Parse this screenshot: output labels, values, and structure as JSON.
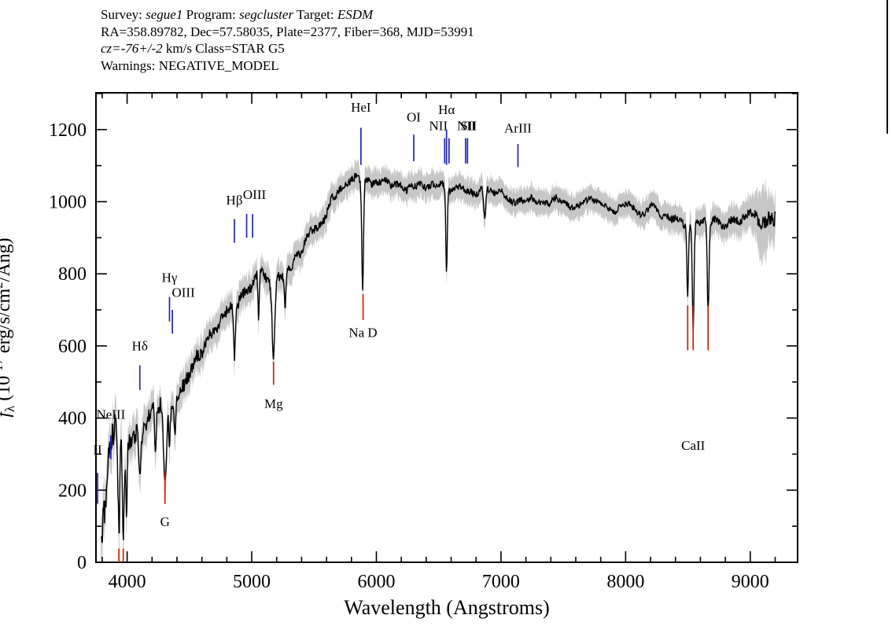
{
  "header": {
    "lines": [
      {
        "segments": [
          {
            "text": "Survey: "
          },
          {
            "text": "segue1",
            "italic": true
          },
          {
            "text": " Program: "
          },
          {
            "text": "segcluster",
            "italic": true
          },
          {
            "text": " Target: "
          },
          {
            "text": "ESDM",
            "italic": true
          }
        ]
      },
      {
        "segments": [
          {
            "text": "RA=358.89782, Dec=57.58035, Plate=2377, Fiber=368, MJD=53991"
          }
        ]
      },
      {
        "segments": [
          {
            "text": "cz=-76+/-2",
            "italic": true
          },
          {
            "text": " km/s Class=STAR G5"
          }
        ]
      },
      {
        "segments": [
          {
            "text": "Warnings: NEGATIVE_MODEL"
          }
        ]
      }
    ]
  },
  "chart_data": {
    "type": "line",
    "xlabel": "Wavelength (Angstroms)",
    "ylabel": "f_lambda (10^-17 erg/s/cm^2/Ang)",
    "ylabel_parts": [
      {
        "t": "f",
        "italic": true,
        "shift": 0
      },
      {
        "t": "λ",
        "shift": 1
      },
      {
        "t": " (10",
        "shift": 0
      },
      {
        "t": "-17",
        "shift": -1
      },
      {
        "t": " erg/s/cm",
        "shift": 0
      },
      {
        "t": "2",
        "shift": -1
      },
      {
        "t": "/Ang)",
        "shift": 0
      }
    ],
    "xlim": [
      3750,
      9380
    ],
    "ylim": [
      0,
      1302
    ],
    "xticks": [
      4000,
      5000,
      6000,
      7000,
      8000,
      9000
    ],
    "yticks": [
      0,
      200,
      400,
      600,
      800,
      1000,
      1200
    ],
    "x_minor_step": 200,
    "y_minor_step": 100,
    "colors": {
      "spectrum": "#000000",
      "error_band": "#c7c7c7",
      "emission_marker": "#2222bb",
      "absorption_marker": "#cc2200",
      "label": "#000000"
    },
    "continuum": [
      [
        3790,
        55
      ],
      [
        3805,
        100
      ],
      [
        3825,
        160
      ],
      [
        3845,
        240
      ],
      [
        3865,
        330
      ],
      [
        3900,
        345
      ],
      [
        3950,
        325
      ],
      [
        4000,
        350
      ],
      [
        4060,
        345
      ],
      [
        4120,
        370
      ],
      [
        4180,
        400
      ],
      [
        4240,
        430
      ],
      [
        4300,
        445
      ],
      [
        4360,
        465
      ],
      [
        4420,
        490
      ],
      [
        4480,
        515
      ],
      [
        4540,
        555
      ],
      [
        4600,
        600
      ],
      [
        4660,
        625
      ],
      [
        4720,
        650
      ],
      [
        4780,
        675
      ],
      [
        4840,
        700
      ],
      [
        4900,
        725
      ],
      [
        4960,
        765
      ],
      [
        5020,
        785
      ],
      [
        5080,
        795
      ],
      [
        5140,
        790
      ],
      [
        5200,
        785
      ],
      [
        5260,
        795
      ],
      [
        5320,
        815
      ],
      [
        5380,
        855
      ],
      [
        5440,
        890
      ],
      [
        5500,
        920
      ],
      [
        5560,
        955
      ],
      [
        5620,
        990
      ],
      [
        5680,
        1020
      ],
      [
        5740,
        1045
      ],
      [
        5800,
        1060
      ],
      [
        5860,
        1065
      ],
      [
        5920,
        1060
      ],
      [
        5980,
        1060
      ],
      [
        6040,
        1050
      ],
      [
        6100,
        1045
      ],
      [
        6160,
        1050
      ],
      [
        6220,
        1045
      ],
      [
        6280,
        1040
      ],
      [
        6340,
        1045
      ],
      [
        6400,
        1040
      ],
      [
        6460,
        1050
      ],
      [
        6520,
        1045
      ],
      [
        6580,
        1040
      ],
      [
        6640,
        1040
      ],
      [
        6700,
        1040
      ],
      [
        6760,
        1030
      ],
      [
        6820,
        1020
      ],
      [
        6880,
        1030
      ],
      [
        6940,
        1025
      ],
      [
        7000,
        1020
      ],
      [
        7060,
        1005
      ],
      [
        7120,
        1000
      ],
      [
        7180,
        1010
      ],
      [
        7240,
        1005
      ],
      [
        7300,
        1000
      ],
      [
        7360,
        1005
      ],
      [
        7420,
        1010
      ],
      [
        7480,
        1000
      ],
      [
        7540,
        995
      ],
      [
        7600,
        985
      ],
      [
        7660,
        990
      ],
      [
        7720,
        995
      ],
      [
        7780,
        1000
      ],
      [
        7840,
        985
      ],
      [
        7900,
        975
      ],
      [
        7960,
        990
      ],
      [
        8020,
        985
      ],
      [
        8080,
        970
      ],
      [
        8140,
        975
      ],
      [
        8200,
        985
      ],
      [
        8260,
        965
      ],
      [
        8320,
        955
      ],
      [
        8380,
        950
      ],
      [
        8440,
        945
      ],
      [
        8500,
        940
      ],
      [
        8560,
        935
      ],
      [
        8620,
        945
      ],
      [
        8680,
        950
      ],
      [
        8740,
        945
      ],
      [
        8800,
        940
      ],
      [
        8860,
        950
      ],
      [
        8920,
        955
      ],
      [
        8980,
        950
      ],
      [
        9040,
        955
      ],
      [
        9100,
        960
      ],
      [
        9140,
        940
      ],
      [
        9170,
        930
      ],
      [
        9200,
        950
      ]
    ],
    "absorption_dips": [
      {
        "wl": 3934,
        "depth": 280,
        "sigma": 7
      },
      {
        "wl": 3969,
        "depth": 240,
        "sigma": 7
      },
      {
        "wl": 3995,
        "depth": 170,
        "sigma": 5
      },
      {
        "wl": 4102,
        "depth": 130,
        "sigma": 8
      },
      {
        "wl": 4227,
        "depth": 110,
        "sigma": 6
      },
      {
        "wl": 4304,
        "depth": 230,
        "sigma": 13
      },
      {
        "wl": 4340,
        "depth": 110,
        "sigma": 7
      },
      {
        "wl": 4383,
        "depth": 100,
        "sigma": 6
      },
      {
        "wl": 4861,
        "depth": 140,
        "sigma": 7
      },
      {
        "wl": 5055,
        "depth": 140,
        "sigma": 5
      },
      {
        "wl": 5175,
        "depth": 210,
        "sigma": 11
      },
      {
        "wl": 5268,
        "depth": 110,
        "sigma": 5
      },
      {
        "wl": 5890,
        "depth": 290,
        "sigma": 7
      },
      {
        "wl": 6563,
        "depth": 225,
        "sigma": 6
      },
      {
        "wl": 6870,
        "depth": 90,
        "sigma": 8
      },
      {
        "wl": 8498,
        "depth": 190,
        "sigma": 6
      },
      {
        "wl": 8542,
        "depth": 290,
        "sigma": 7
      },
      {
        "wl": 8662,
        "depth": 250,
        "sigma": 7
      }
    ],
    "noise_amplitude": [
      [
        3790,
        85
      ],
      [
        3900,
        90
      ],
      [
        4000,
        60
      ],
      [
        4150,
        50
      ],
      [
        4300,
        45
      ],
      [
        4500,
        40
      ],
      [
        4700,
        32
      ],
      [
        4900,
        30
      ],
      [
        5100,
        28
      ],
      [
        5400,
        25
      ],
      [
        5700,
        22
      ],
      [
        6000,
        20
      ],
      [
        6500,
        19
      ],
      [
        7000,
        18
      ],
      [
        7500,
        17
      ],
      [
        8000,
        18
      ],
      [
        8400,
        20
      ],
      [
        8800,
        22
      ],
      [
        9050,
        28
      ],
      [
        9120,
        40
      ],
      [
        9200,
        45
      ]
    ],
    "error_halfwidth": [
      [
        3790,
        65
      ],
      [
        3900,
        60
      ],
      [
        4000,
        52
      ],
      [
        4200,
        48
      ],
      [
        4500,
        44
      ],
      [
        4800,
        42
      ],
      [
        5100,
        40
      ],
      [
        5500,
        38
      ],
      [
        6000,
        36
      ],
      [
        6500,
        35
      ],
      [
        7000,
        34
      ],
      [
        7500,
        34
      ],
      [
        8000,
        35
      ],
      [
        8400,
        37
      ],
      [
        8800,
        40
      ],
      [
        9000,
        45
      ],
      [
        9060,
        70
      ],
      [
        9100,
        115
      ],
      [
        9150,
        70
      ],
      [
        9200,
        60
      ]
    ],
    "spectral_lines": [
      {
        "label": "II",
        "wl": 3763,
        "type": "emission",
        "label_y": 300,
        "tick": [
          162,
          248
        ]
      },
      {
        "label": "NeIII",
        "wl": 3869,
        "type": "emission",
        "label_y": 398,
        "tick": [
          286,
          352
        ]
      },
      {
        "label": "Hδ",
        "wl": 4102,
        "type": "emission",
        "label_y": 588,
        "tick": [
          478,
          546
        ]
      },
      {
        "label": "Hγ",
        "wl": 4340,
        "type": "emission",
        "label_y": 778,
        "tick": [
          668,
          736
        ]
      },
      {
        "label": "OIII",
        "wl": 4363,
        "type": "emission",
        "label_y": 736,
        "label_dx": 14,
        "tick": [
          634,
          700
        ]
      },
      {
        "label": "Hβ",
        "wl": 4861,
        "type": "emission",
        "label_y": 992,
        "tick": [
          886,
          952
        ]
      },
      {
        "label": "OIII",
        "wl": 4959,
        "type": "emission",
        "label_y": 1008,
        "label_dx": 10,
        "tick": [
          900,
          966
        ]
      },
      {
        "label": "",
        "wl": 5007,
        "type": "emission",
        "tick": [
          900,
          966
        ]
      },
      {
        "label": "HeI",
        "wl": 5876,
        "type": "emission",
        "label_y": 1250,
        "tick": [
          1102,
          1205
        ]
      },
      {
        "label": "OI",
        "wl": 6300,
        "type": "emission",
        "label_y": 1222,
        "tick": [
          1112,
          1186
        ]
      },
      {
        "label": "NII",
        "wl": 6548,
        "type": "emission",
        "label_y": 1198,
        "label_dx": -8,
        "tick": [
          1106,
          1176
        ]
      },
      {
        "label": "Hα",
        "wl": 6563,
        "type": "emission",
        "label_y": 1243,
        "tick": [
          1102,
          1200
        ]
      },
      {
        "label": "NII",
        "wl": 6583,
        "type": "emission",
        "label_y": 1198,
        "label_dx": 22,
        "tick": [
          1106,
          1176
        ]
      },
      {
        "label": "SII",
        "wl": 6716,
        "type": "emission",
        "label_y": 1198,
        "label_dx": 4,
        "tick": [
          1106,
          1176
        ]
      },
      {
        "label": "",
        "wl": 6731,
        "type": "emission",
        "tick": [
          1106,
          1176
        ]
      },
      {
        "label": "ArIII",
        "wl": 7136,
        "type": "emission",
        "label_y": 1192,
        "tick": [
          1096,
          1160
        ]
      },
      {
        "label": "",
        "wl": 3934,
        "type": "absorption",
        "tick": [
          0,
          38
        ]
      },
      {
        "label": "",
        "wl": 3969,
        "type": "absorption",
        "tick": [
          0,
          38
        ]
      },
      {
        "label": "G",
        "wl": 4304,
        "type": "absorption",
        "label_y": 100,
        "tick": [
          162,
          250
        ]
      },
      {
        "label": "Mg",
        "wl": 5175,
        "type": "absorption",
        "label_y": 428,
        "tick": [
          492,
          556
        ]
      },
      {
        "label": "Na D",
        "wl": 5893,
        "type": "absorption",
        "label_y": 625,
        "tick": [
          672,
          744
        ]
      },
      {
        "label": "",
        "wl": 8498,
        "type": "absorption",
        "tick": [
          588,
          712
        ]
      },
      {
        "label": "CaII",
        "wl": 8542,
        "type": "absorption",
        "label_y": 312,
        "tick": [
          588,
          712
        ]
      },
      {
        "label": "",
        "wl": 8662,
        "type": "absorption",
        "tick": [
          588,
          712
        ]
      }
    ]
  }
}
